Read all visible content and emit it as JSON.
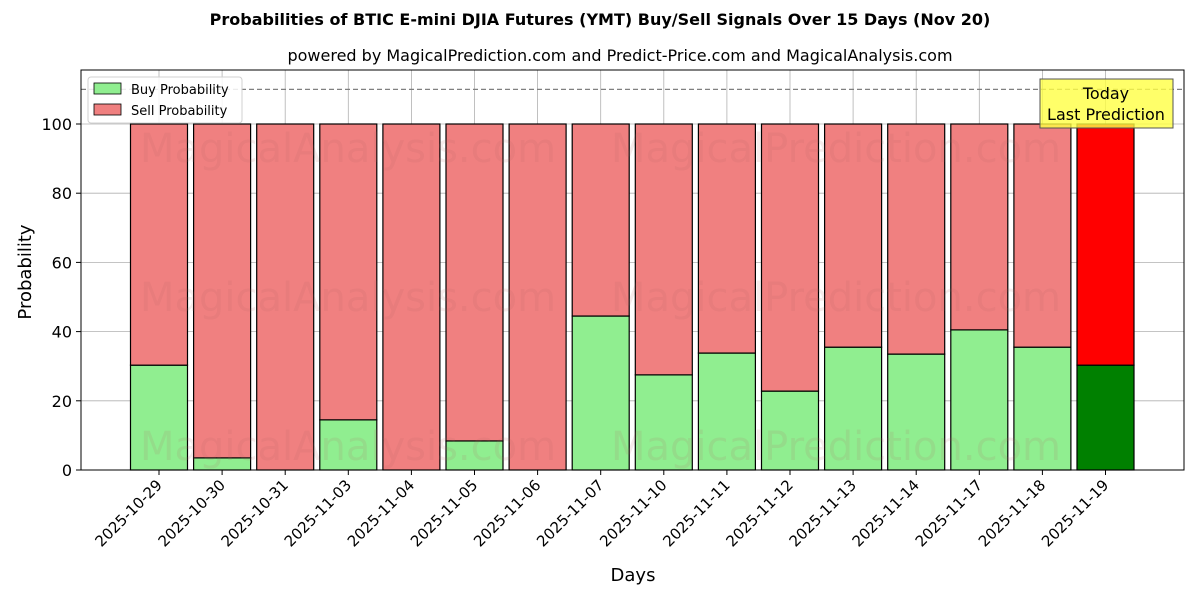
{
  "chart_data": {
    "type": "bar",
    "stacked": true,
    "title": "Probabilities of BTIC E-mini DJIA Futures (YMT) Buy/Sell Signals Over 15 Days (Nov 20)",
    "subtitle": "powered by MagicalPrediction.com and Predict-Price.com and MagicalAnalysis.com",
    "xlabel": "Days",
    "ylabel": "Probability",
    "ylim": [
      0,
      115
    ],
    "yticks": [
      0,
      20,
      40,
      60,
      80,
      100
    ],
    "grid": true,
    "legend_position": "upper left",
    "reference_line": {
      "y": 110,
      "style": "dashed",
      "color": "#808080"
    },
    "categories": [
      "2025-10-29",
      "2025-10-30",
      "2025-10-31",
      "2025-11-03",
      "2025-11-04",
      "2025-11-05",
      "2025-11-06",
      "2025-11-07",
      "2025-11-10",
      "2025-11-11",
      "2025-11-12",
      "2025-11-13",
      "2025-11-14",
      "2025-11-17",
      "2025-11-18",
      "2025-11-19"
    ],
    "series": [
      {
        "name": "Buy Probability",
        "color": "#90ee90",
        "values": [
          30.3,
          3.5,
          0,
          14.5,
          0,
          8.4,
          0,
          44.5,
          27.5,
          33.8,
          22.8,
          35.5,
          33.5,
          40.5,
          35.5,
          30.3
        ]
      },
      {
        "name": "Sell Probability",
        "color": "#f08080",
        "values": [
          69.7,
          96.5,
          100,
          85.5,
          100,
          91.6,
          100,
          55.5,
          72.5,
          66.2,
          77.2,
          64.5,
          66.5,
          59.5,
          64.5,
          69.7
        ]
      }
    ],
    "highlight": {
      "index": 15,
      "buy_color": "#008000",
      "sell_color": "#ff0000"
    },
    "annotation": {
      "text_line1": "Today",
      "text_line2": "Last Prediction",
      "background": "#ffff44"
    },
    "watermarks": [
      "MagicalAnalysis.com",
      "MagicalPrediction.com"
    ]
  }
}
